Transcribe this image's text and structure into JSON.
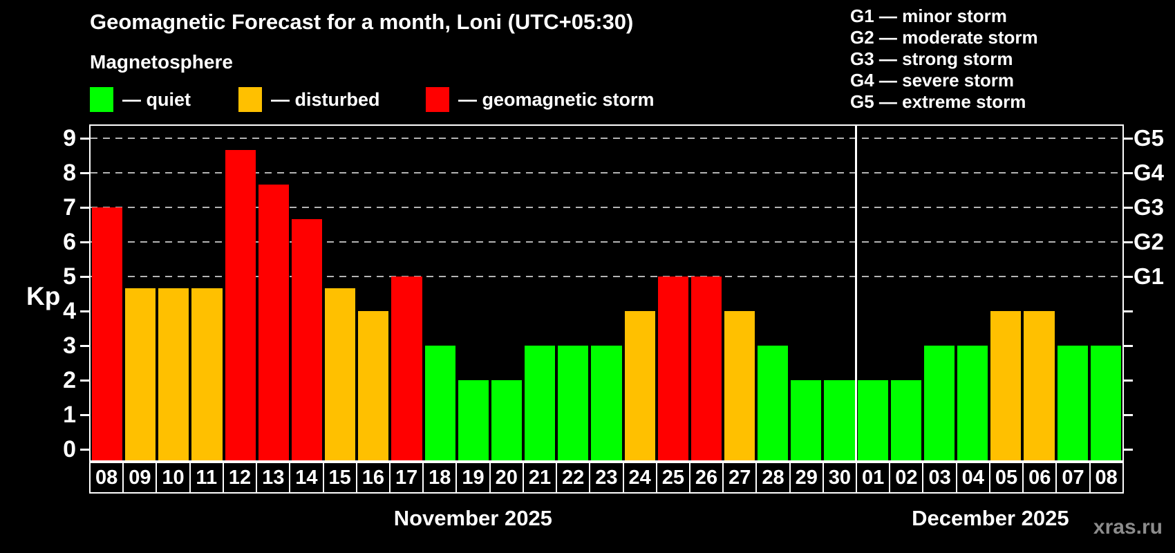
{
  "title": "Geomagnetic Forecast for a month, Loni (UTC+05:30)",
  "subtitle": "Magnetosphere",
  "watermark": "xras.ru",
  "colors": {
    "quiet": "#00ff00",
    "disturbed": "#ffc000",
    "storm": "#ff0000",
    "background": "#000000",
    "axis": "#ffffff",
    "gridline": "#b4b4b4",
    "watermark_gray": "#8c8c8c"
  },
  "legend": [
    {
      "key": "quiet",
      "label": "— quiet",
      "color": "#00ff00"
    },
    {
      "key": "disturbed",
      "label": "— disturbed",
      "color": "#ffc000"
    },
    {
      "key": "storm",
      "label": "— geomagnetic storm",
      "color": "#ff0000"
    }
  ],
  "g_legend": [
    "G1 — minor storm",
    "G2 — moderate storm",
    "G3 — strong storm",
    "G4 — severe storm",
    "G5 — extreme storm"
  ],
  "chart_data": {
    "type": "bar",
    "title": "Geomagnetic Forecast for a month, Loni (UTC+05:30)",
    "xlabel": "",
    "ylabel": "Kp",
    "ylim": [
      0,
      9.4
    ],
    "yticks": [
      0,
      1,
      2,
      3,
      4,
      5,
      6,
      7,
      8,
      9
    ],
    "gridlines_at": [
      5,
      6,
      7,
      8,
      9
    ],
    "grid": "dashed horizontal at storm levels only",
    "legend_position": "top",
    "right_axis_labels": [
      {
        "label": "G1",
        "kp": 5
      },
      {
        "label": "G2",
        "kp": 6
      },
      {
        "label": "G3",
        "kp": 7
      },
      {
        "label": "G4",
        "kp": 8
      },
      {
        "label": "G5",
        "kp": 9
      }
    ],
    "months": [
      {
        "label": "November 2025",
        "days": 23
      },
      {
        "label": "December 2025",
        "days": 8
      }
    ],
    "categories": [
      "08",
      "09",
      "10",
      "11",
      "12",
      "13",
      "14",
      "15",
      "16",
      "17",
      "18",
      "19",
      "20",
      "21",
      "22",
      "23",
      "24",
      "25",
      "26",
      "27",
      "28",
      "29",
      "30",
      "01",
      "02",
      "03",
      "04",
      "05",
      "06",
      "07",
      "08"
    ],
    "values": [
      7,
      4.67,
      4.67,
      4.67,
      8.67,
      7.67,
      6.67,
      4.67,
      4,
      5,
      3,
      2,
      2,
      3,
      3,
      3,
      4,
      5,
      5,
      4,
      3,
      2,
      2,
      2,
      2,
      3,
      3,
      4,
      4,
      3,
      3
    ],
    "statuses": [
      "storm",
      "disturbed",
      "disturbed",
      "disturbed",
      "storm",
      "storm",
      "storm",
      "disturbed",
      "disturbed",
      "storm",
      "quiet",
      "quiet",
      "quiet",
      "quiet",
      "quiet",
      "quiet",
      "disturbed",
      "storm",
      "storm",
      "disturbed",
      "quiet",
      "quiet",
      "quiet",
      "quiet",
      "quiet",
      "quiet",
      "quiet",
      "disturbed",
      "disturbed",
      "quiet",
      "quiet"
    ]
  }
}
